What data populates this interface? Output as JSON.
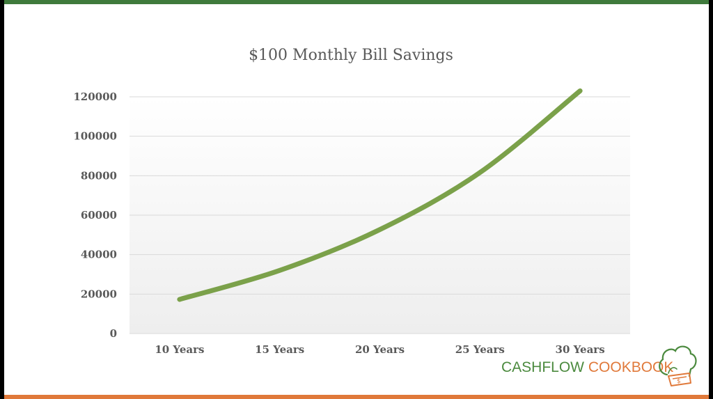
{
  "colors": {
    "top_bar": "#3f7a3c",
    "bottom_bar": "#e0793a",
    "line": "#7ba14a",
    "grid": "#d9d9d9",
    "brand_green": "#4b8a3e",
    "brand_orange": "#e0793a"
  },
  "chart_data": {
    "type": "line",
    "title": "$100 Monthly Bill Savings",
    "categories": [
      "10 Years",
      "15 Years",
      "20 Years",
      "25 Years",
      "30 Years"
    ],
    "series": [
      {
        "values": [
          17300,
          32000,
          52700,
          81600,
          123000
        ]
      }
    ],
    "ylim": [
      0,
      120000
    ],
    "yticks": [
      0,
      20000,
      40000,
      60000,
      80000,
      100000,
      120000
    ],
    "grid": true,
    "legend": "none"
  },
  "brand": {
    "part1": "CASHFLOW",
    "part2": "COOKBOOK",
    "logo_icon": "chef-hat-icon"
  }
}
